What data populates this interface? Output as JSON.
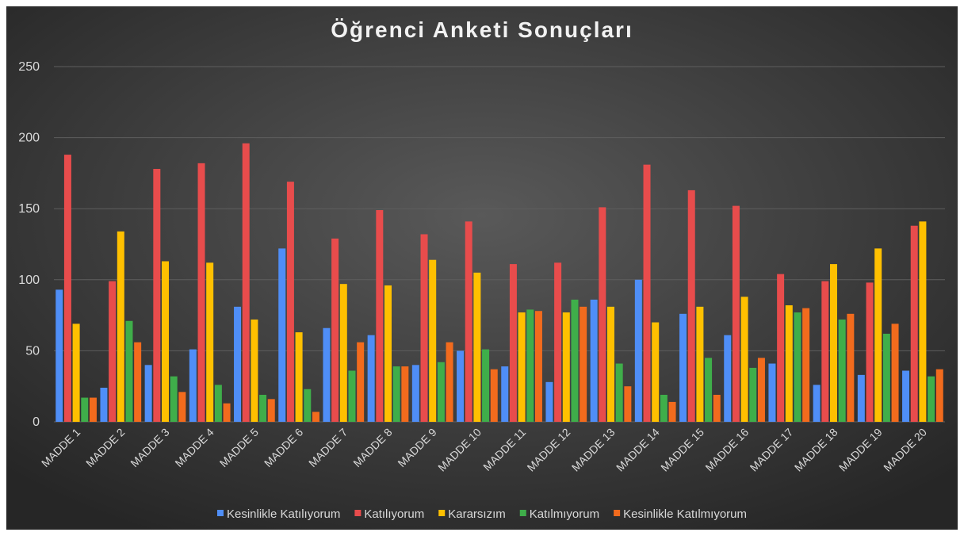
{
  "chart_data": {
    "type": "bar",
    "title": "Öğrenci Anketi Sonuçları",
    "categories": [
      "MADDE 1",
      "MADDE 2",
      "MADDE 3",
      "MADDE 4",
      "MADDE 5",
      "MADDE 6",
      "MADDE 7",
      "MADDE 8",
      "MADDE 9",
      "MADDE 10",
      "MADDE 11",
      "MADDE 12",
      "MADDE 13",
      "MADDE 14",
      "MADDE 15",
      "MADDE 16",
      "MADDE 17",
      "MADDE 18",
      "MADDE 19",
      "MADDE 20"
    ],
    "series": [
      {
        "name": "Kesinlikle Katılıyorum",
        "color": "#4f8ef7",
        "values": [
          93,
          24,
          40,
          51,
          81,
          122,
          66,
          61,
          40,
          50,
          39,
          28,
          86,
          100,
          76,
          61,
          41,
          26,
          33,
          36
        ]
      },
      {
        "name": "Katılıyorum",
        "color": "#e84c4c",
        "values": [
          188,
          99,
          178,
          182,
          196,
          169,
          129,
          149,
          132,
          141,
          111,
          112,
          151,
          181,
          163,
          152,
          104,
          99,
          98,
          138
        ]
      },
      {
        "name": "Kararsızım",
        "color": "#ffc000",
        "values": [
          69,
          134,
          113,
          112,
          72,
          63,
          97,
          96,
          114,
          105,
          77,
          77,
          81,
          70,
          81,
          88,
          82,
          111,
          122,
          141
        ]
      },
      {
        "name": "Katılmıyorum",
        "color": "#3fae4a",
        "values": [
          17,
          71,
          32,
          26,
          19,
          23,
          36,
          39,
          42,
          51,
          79,
          86,
          41,
          19,
          45,
          38,
          77,
          72,
          62,
          32
        ]
      },
      {
        "name": "Kesinlikle Katılmıyorum",
        "color": "#f26b1d",
        "values": [
          17,
          56,
          21,
          13,
          16,
          7,
          56,
          39,
          56,
          37,
          78,
          81,
          25,
          14,
          19,
          45,
          80,
          76,
          69,
          37
        ]
      }
    ],
    "ylim": [
      0,
      250
    ],
    "yticks": [
      0,
      50,
      100,
      150,
      200,
      250
    ],
    "grid": true,
    "legend": "bottom"
  }
}
